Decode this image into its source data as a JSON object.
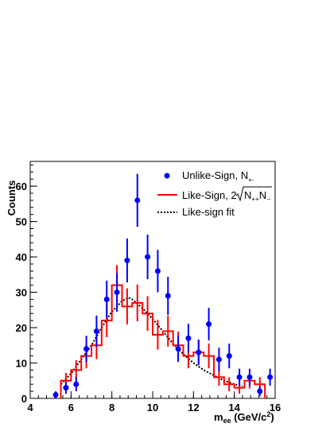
{
  "chart_data": {
    "type": "scatter",
    "xlabel": "m",
    "xlabel_sub": "ee",
    "xlabel_unit_open": "(GeV/c",
    "xlabel_unit_sup": "2",
    "xlabel_unit_close": ")",
    "ylabel": "Counts",
    "xlim": [
      4,
      16
    ],
    "ylim": [
      0,
      67
    ],
    "x_ticks": [
      4,
      6,
      8,
      10,
      12,
      14,
      16
    ],
    "y_ticks": [
      0,
      10,
      20,
      30,
      40,
      50,
      60
    ],
    "legend_position": "top-right",
    "legend": {
      "unlike": {
        "label": "Unlike-Sign, N",
        "sub": "+-"
      },
      "like": {
        "label_pre": "Like-Sign, 2",
        "sqrt_a": "N",
        "sqrt_a_sub": "++",
        "sqrt_b": "N",
        "sqrt_b_sub": "--"
      },
      "fit": {
        "label": "Like-sign fit"
      }
    },
    "series": [
      {
        "name": "Unlike-Sign, N+-",
        "kind": "points",
        "color": "#0000ff",
        "x": [
          5.25,
          5.75,
          6.25,
          6.75,
          7.25,
          7.75,
          8.25,
          8.75,
          9.25,
          9.75,
          10.25,
          10.75,
          11.25,
          11.75,
          12.25,
          12.75,
          13.25,
          13.75,
          14.25,
          14.75,
          15.25,
          15.75
        ],
        "y": [
          1,
          3,
          4,
          14,
          19,
          28,
          30,
          39,
          56,
          40,
          36,
          29,
          14,
          17,
          13,
          21,
          11,
          12,
          6,
          6,
          2,
          6
        ],
        "err": [
          1.0,
          1.7,
          2.0,
          3.7,
          4.4,
          5.3,
          5.5,
          6.2,
          7.5,
          6.3,
          6.0,
          5.4,
          3.7,
          4.1,
          3.6,
          4.6,
          3.3,
          3.5,
          2.4,
          2.4,
          1.4,
          2.4
        ]
      },
      {
        "name": "Like-Sign, 2sqrt(N++N--)",
        "kind": "step",
        "color": "#ff0000",
        "edges": [
          5.5,
          6.0,
          6.5,
          7.0,
          7.5,
          8.0,
          8.5,
          9.0,
          9.5,
          10.0,
          10.5,
          11.0,
          11.5,
          12.0,
          12.5,
          13.0,
          13.5,
          14.0,
          14.5,
          15.0,
          15.5
        ],
        "y": [
          5,
          8,
          12,
          15,
          22,
          32,
          26,
          27,
          24,
          18,
          19,
          15,
          12,
          13,
          12,
          6,
          4,
          3,
          5,
          4
        ],
        "err": [
          2.2,
          2.8,
          3.5,
          3.9,
          4.7,
          5.7,
          5.1,
          5.2,
          4.9,
          4.2,
          4.4,
          3.9,
          3.5,
          3.6,
          3.5,
          2.4,
          2.0,
          1.7,
          2.2,
          2.0
        ]
      },
      {
        "name": "Like-sign fit",
        "kind": "curve",
        "color": "#000000",
        "x": [
          5.5,
          6.0,
          6.5,
          7.0,
          7.5,
          8.0,
          8.5,
          8.8,
          9.0,
          9.5,
          10.0,
          10.5,
          11.0,
          11.5,
          12.0,
          12.5,
          13.0,
          13.5,
          14.0,
          14.4
        ],
        "y": [
          4,
          7,
          11,
          15,
          20,
          24.5,
          27.5,
          28.5,
          28,
          25.5,
          22.5,
          19,
          15.5,
          12.5,
          10,
          8,
          6.5,
          5,
          4,
          3.5
        ]
      }
    ]
  }
}
